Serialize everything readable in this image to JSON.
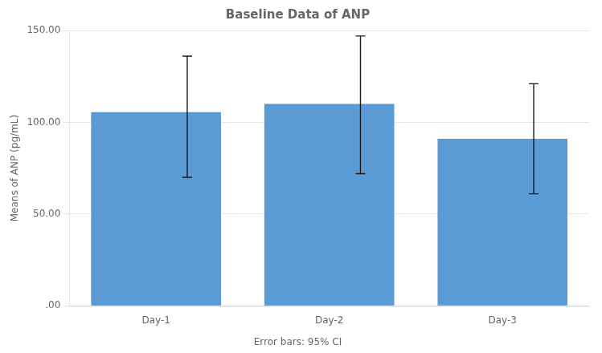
{
  "chart_data": {
    "type": "bar",
    "title": "Baseline Data of ANP",
    "ylabel": "Means of ANP (pg/mL)",
    "categories": [
      "Day-1",
      "Day-2",
      "Day-3"
    ],
    "values": [
      105.5,
      110.0,
      91.0
    ],
    "ci_lower": [
      70.0,
      72.0,
      61.0
    ],
    "ci_upper": [
      136.0,
      147.0,
      121.0
    ],
    "color": "#5b9bd5",
    "ylim": [
      0,
      150
    ],
    "yticks": [
      {
        "value": 0,
        "label": ".00"
      },
      {
        "value": 50,
        "label": "50.00"
      },
      {
        "value": 100,
        "label": "100.00"
      },
      {
        "value": 150,
        "label": "150.00"
      }
    ],
    "grid": true,
    "annotations": [
      "Error bars: 95% CI"
    ]
  }
}
